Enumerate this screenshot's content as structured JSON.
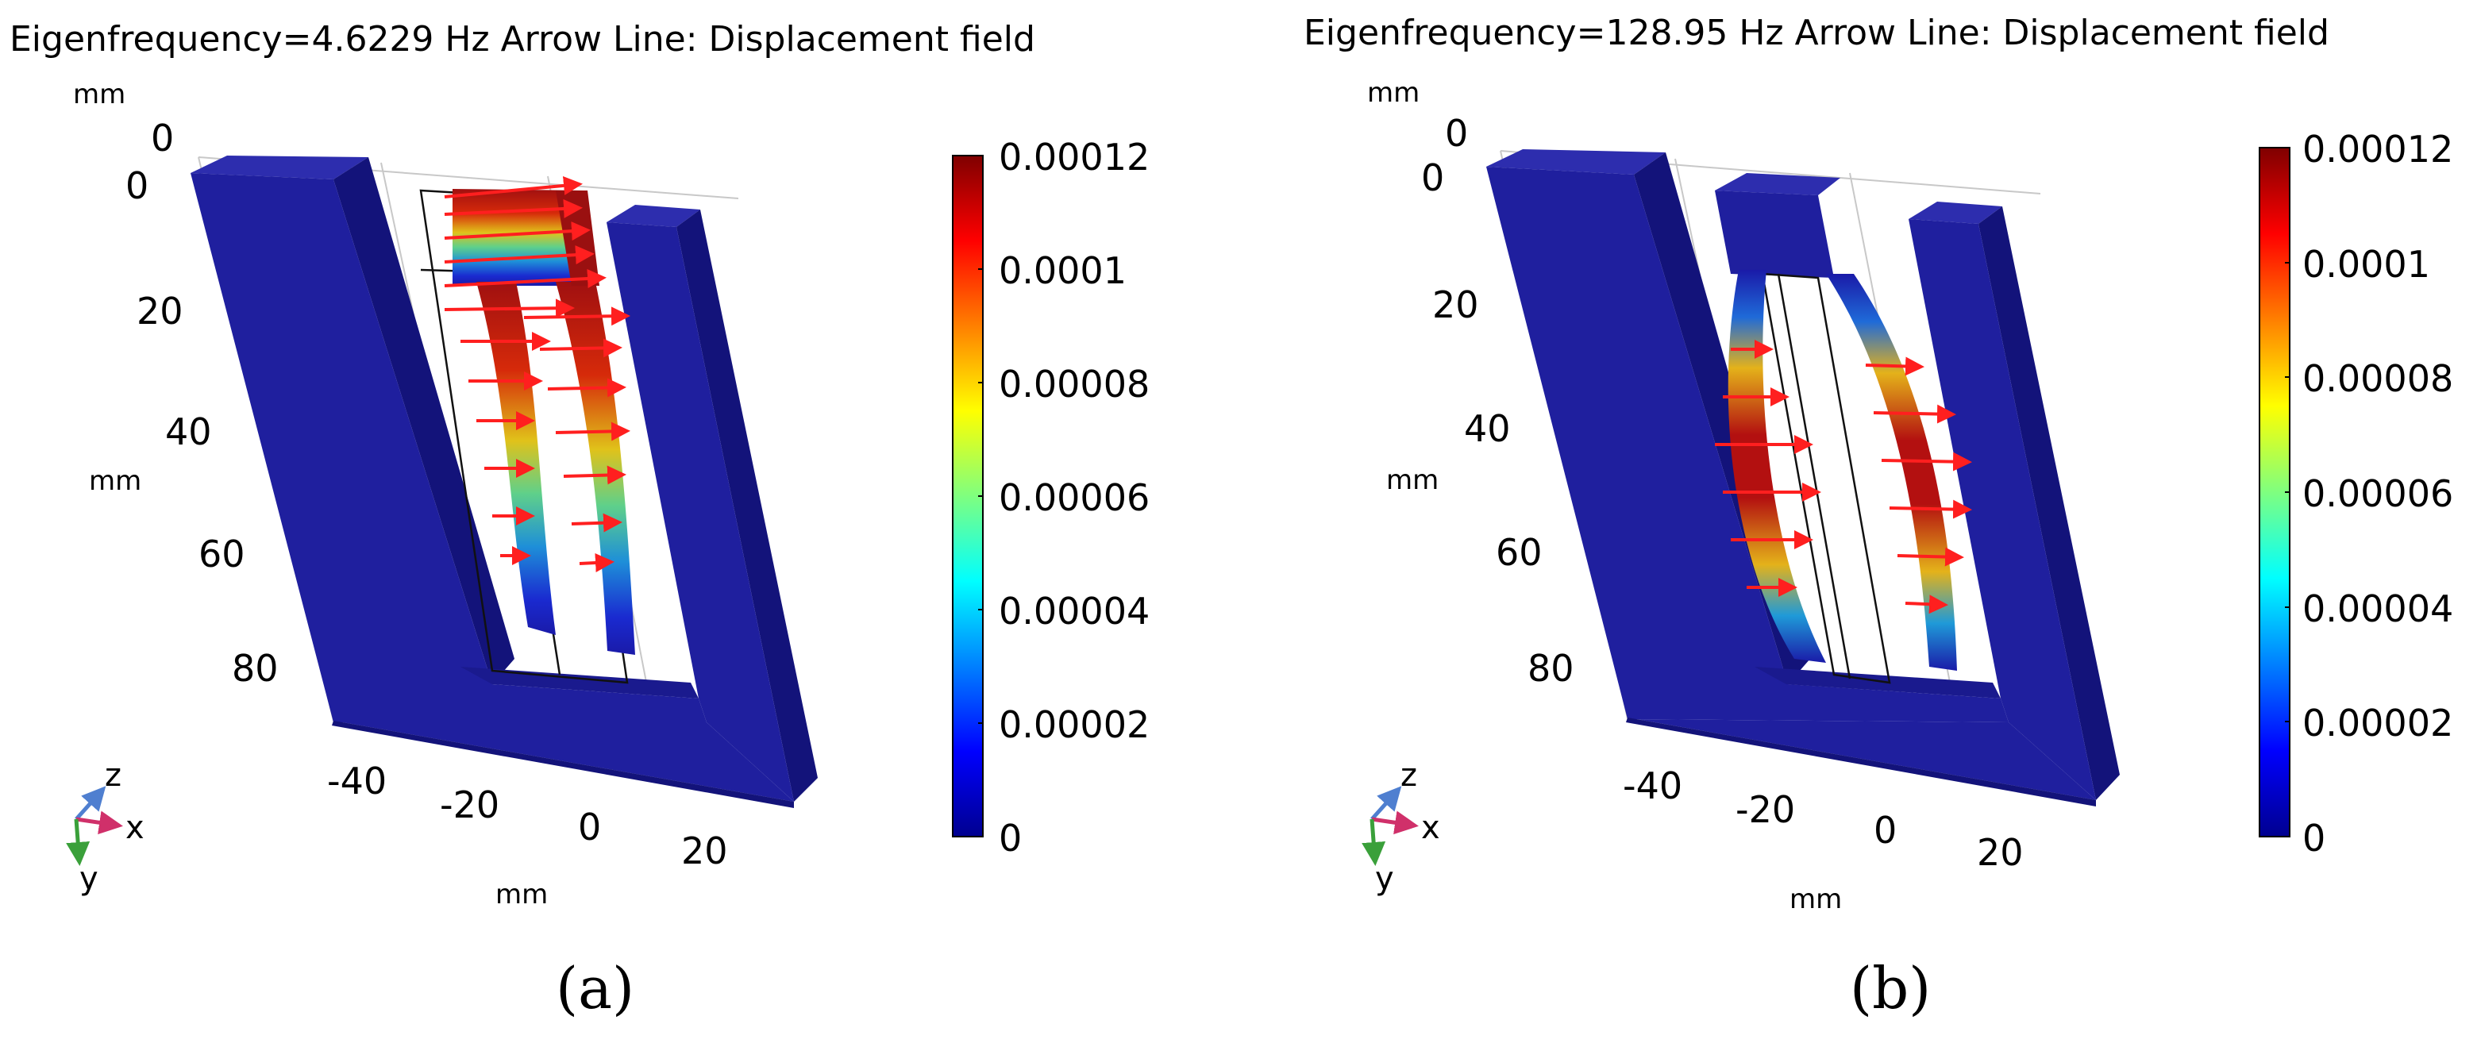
{
  "panels": [
    {
      "id": "a",
      "title": "Eigenfrequency=4.6229 Hz  Arrow Line: Displacement field",
      "unit_label": "mm",
      "y_ticks": [
        "0",
        "20",
        "40",
        "60",
        "80"
      ],
      "x_ticks": [
        "-40",
        "-20",
        "0",
        "20"
      ],
      "z_tick": "0",
      "colorbar": {
        "ticks": [
          "0.00012",
          "0.0001",
          "0.00008",
          "0.00006",
          "0.00004",
          "0.00002",
          "0"
        ],
        "range": [
          0,
          0.00012
        ]
      },
      "triad": {
        "z": "z",
        "x": "x",
        "y": "y"
      },
      "sublabel": "(a)"
    },
    {
      "id": "b",
      "title": "Eigenfrequency=128.95 Hz  Arrow Line: Displacement field",
      "unit_label": "mm",
      "y_ticks": [
        "0",
        "20",
        "40",
        "60",
        "80"
      ],
      "x_ticks": [
        "-40",
        "-20",
        "0",
        "20"
      ],
      "z_tick": "0",
      "colorbar": {
        "ticks": [
          "0.00012",
          "0.0001",
          "0.00008",
          "0.00006",
          "0.00004",
          "0.00002",
          "0"
        ],
        "range": [
          0,
          0.00012
        ]
      },
      "triad": {
        "z": "z",
        "x": "x",
        "y": "y"
      },
      "sublabel": "(b)"
    }
  ],
  "colors": {
    "frame_blue": "#1f1f9e",
    "frame_side": "#13137a",
    "frame_top": "#2d2dae",
    "arrow_red": "#ff1f1f",
    "triad_z": "#4f7fd0",
    "triad_x": "#d0306a",
    "triad_y": "#3aa03a"
  }
}
